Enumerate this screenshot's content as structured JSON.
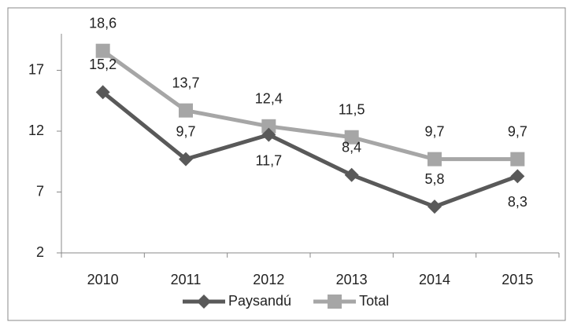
{
  "chart_data": {
    "type": "line",
    "categories": [
      "2010",
      "2011",
      "2012",
      "2013",
      "2014",
      "2015"
    ],
    "series": [
      {
        "name": "Paysandú",
        "color": "#595959",
        "values": [
          15.2,
          9.7,
          11.7,
          8.4,
          5.8,
          8.3
        ],
        "value_labels": [
          "15,2",
          "9,7",
          "11,7",
          "8,4",
          "5,8",
          "8,3"
        ]
      },
      {
        "name": "Total",
        "color": "#a6a6a6",
        "values": [
          18.6,
          13.7,
          12.4,
          11.5,
          9.7,
          9.7
        ],
        "value_labels": [
          "18,6",
          "13,7",
          "12,4",
          "11,5",
          "9,7",
          "9,7"
        ]
      }
    ],
    "ylim": [
      2,
      20
    ],
    "yticks": [
      2,
      7,
      12,
      17
    ],
    "legend": "bottom"
  }
}
